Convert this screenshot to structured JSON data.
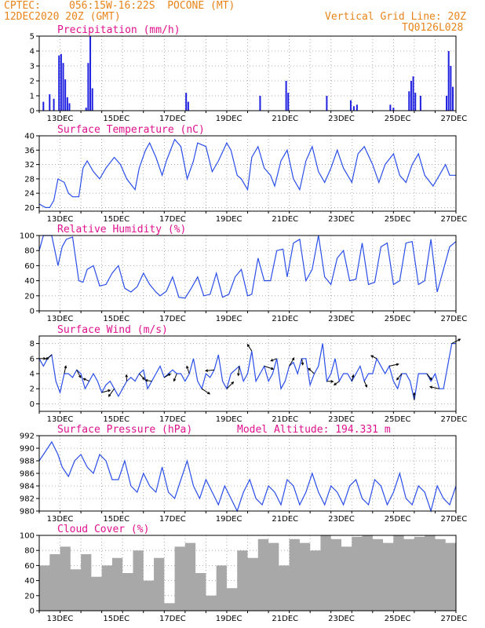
{
  "header": {
    "source": "CPTEC:",
    "location": "056:15W-16:22S  POCONE (MT)",
    "init": "12DEC2020 20Z (GMT)",
    "grid_note": "Vertical Grid Line: 20Z",
    "code": "TQ0126L028"
  },
  "model_altitude": "Model Altitude: 194.331 m",
  "colors": {
    "line": "#2a4ee8",
    "bar": "#2020e0",
    "cloud": "#a8a8a8",
    "title": "#e0118d",
    "header": "#e8841a"
  },
  "chart_data": [
    {
      "type": "bar",
      "title": "Precipitation (mm/h)",
      "ylim": [
        0,
        5
      ],
      "yticks": [
        0,
        1,
        2,
        3,
        4,
        5
      ],
      "x_labels": [
        "13DEC",
        "15DEC",
        "17DEC",
        "19DEC",
        "21DEC",
        "23DEC",
        "25DEC",
        "27DEC"
      ],
      "grid": true,
      "bars": [
        {
          "t": 0.2,
          "v": 0.6
        },
        {
          "t": 0.5,
          "v": 1.1
        },
        {
          "t": 0.7,
          "v": 0.8
        },
        {
          "t": 0.95,
          "v": 3.7
        },
        {
          "t": 1.05,
          "v": 3.8
        },
        {
          "t": 1.15,
          "v": 3.2
        },
        {
          "t": 1.25,
          "v": 2.1
        },
        {
          "t": 1.35,
          "v": 0.9
        },
        {
          "t": 1.45,
          "v": 0.5
        },
        {
          "t": 2.25,
          "v": 0.2
        },
        {
          "t": 2.35,
          "v": 3.2
        },
        {
          "t": 2.45,
          "v": 5.0
        },
        {
          "t": 2.55,
          "v": 1.5
        },
        {
          "t": 7.05,
          "v": 1.2
        },
        {
          "t": 7.15,
          "v": 0.6
        },
        {
          "t": 10.6,
          "v": 1.0
        },
        {
          "t": 11.85,
          "v": 2.0
        },
        {
          "t": 11.95,
          "v": 1.2
        },
        {
          "t": 13.8,
          "v": 1.0
        },
        {
          "t": 14.95,
          "v": 0.7
        },
        {
          "t": 15.1,
          "v": 0.3
        },
        {
          "t": 15.25,
          "v": 0.4
        },
        {
          "t": 16.85,
          "v": 0.4
        },
        {
          "t": 17.0,
          "v": 0.2
        },
        {
          "t": 17.75,
          "v": 1.3
        },
        {
          "t": 17.85,
          "v": 2.0
        },
        {
          "t": 17.95,
          "v": 2.3
        },
        {
          "t": 18.05,
          "v": 1.2
        },
        {
          "t": 18.3,
          "v": 1.0
        },
        {
          "t": 19.55,
          "v": 1.0
        },
        {
          "t": 19.65,
          "v": 4.0
        },
        {
          "t": 19.75,
          "v": 3.0
        },
        {
          "t": 19.85,
          "v": 1.6
        }
      ]
    },
    {
      "type": "line",
      "title": "Surface Temperature (nC)",
      "ylim": [
        19,
        40
      ],
      "yticks": [
        20,
        24,
        28,
        32,
        36,
        40
      ],
      "x_labels": [
        "13DEC",
        "15DEC",
        "17DEC",
        "19DEC",
        "21DEC",
        "23DEC",
        "25DEC",
        "27DEC"
      ],
      "grid": true,
      "x": [
        0,
        0.3,
        0.5,
        0.7,
        0.9,
        1.2,
        1.4,
        1.6,
        1.9,
        2.1,
        2.3,
        2.6,
        2.9,
        3.2,
        3.6,
        3.9,
        4.2,
        4.6,
        4.8,
        5.1,
        5.3,
        5.6,
        5.9,
        6.1,
        6.5,
        6.8,
        7.1,
        7.4,
        7.6,
        8.0,
        8.3,
        8.6,
        9.0,
        9.2,
        9.5,
        9.7,
        10.0,
        10.2,
        10.5,
        10.8,
        11.1,
        11.3,
        11.6,
        11.9,
        12.2,
        12.5,
        12.8,
        13.1,
        13.4,
        13.7,
        14.0,
        14.3,
        14.6,
        15.0,
        15.3,
        15.6,
        16.0,
        16.3,
        16.6,
        17.0,
        17.3,
        17.6,
        17.9,
        18.2,
        18.5,
        18.9,
        19.2,
        19.5,
        19.7,
        20.0
      ],
      "y": [
        21,
        20,
        20,
        22,
        28,
        27,
        24,
        23,
        23,
        31,
        33,
        30,
        28,
        31,
        34,
        32,
        28,
        25,
        31,
        36,
        38,
        34,
        29,
        33,
        39,
        37,
        28,
        33,
        38,
        37,
        30,
        33,
        38,
        36,
        29,
        28,
        25,
        34,
        37,
        31,
        29,
        26,
        33,
        36,
        28,
        25,
        33,
        37,
        30,
        27,
        31,
        36,
        31,
        27,
        35,
        37,
        32,
        27,
        32,
        35,
        29,
        27,
        32,
        35,
        29,
        26,
        29,
        32,
        29,
        29
      ]
    },
    {
      "type": "line",
      "title": "Relative Humidity (%)",
      "ylim": [
        0,
        100
      ],
      "yticks": [
        0,
        20,
        40,
        60,
        80,
        100
      ],
      "x_labels": [
        "13DEC",
        "15DEC",
        "17DEC",
        "19DEC",
        "21DEC",
        "23DEC",
        "25DEC",
        "27DEC"
      ],
      "grid": true,
      "x": [
        0,
        0.2,
        0.4,
        0.6,
        0.9,
        1.1,
        1.3,
        1.6,
        1.9,
        2.1,
        2.3,
        2.6,
        2.9,
        3.2,
        3.5,
        3.8,
        4.1,
        4.4,
        4.7,
        5.0,
        5.3,
        5.6,
        5.8,
        6.1,
        6.4,
        6.7,
        7.0,
        7.3,
        7.6,
        7.9,
        8.2,
        8.5,
        8.8,
        9.1,
        9.4,
        9.7,
        10.0,
        10.2,
        10.5,
        10.8,
        11.1,
        11.4,
        11.7,
        11.9,
        12.2,
        12.5,
        12.8,
        13.1,
        13.4,
        13.7,
        14.0,
        14.3,
        14.6,
        14.9,
        15.2,
        15.5,
        15.8,
        16.1,
        16.4,
        16.7,
        17.0,
        17.3,
        17.6,
        17.9,
        18.2,
        18.5,
        18.8,
        19.1,
        19.4,
        19.7,
        20.0
      ],
      "y": [
        80,
        100,
        100,
        100,
        60,
        85,
        95,
        98,
        40,
        38,
        55,
        60,
        33,
        35,
        50,
        60,
        30,
        25,
        32,
        50,
        35,
        25,
        20,
        26,
        45,
        18,
        17,
        30,
        45,
        20,
        22,
        50,
        18,
        22,
        45,
        55,
        20,
        22,
        70,
        40,
        40,
        80,
        82,
        45,
        90,
        95,
        40,
        55,
        100,
        45,
        35,
        70,
        80,
        40,
        42,
        90,
        35,
        38,
        85,
        90,
        35,
        40,
        90,
        92,
        35,
        40,
        95,
        25,
        55,
        85,
        92
      ]
    },
    {
      "type": "line",
      "title": "Surface Wind (m/s)",
      "ylim": [
        -1,
        9
      ],
      "yticks": [
        0,
        2,
        4,
        6,
        8
      ],
      "x_labels": [
        "13DEC",
        "15DEC",
        "17DEC",
        "19DEC",
        "21DEC",
        "23DEC",
        "25DEC",
        "27DEC"
      ],
      "grid": true,
      "x": [
        0,
        0.2,
        0.4,
        0.6,
        0.8,
        1.0,
        1.2,
        1.4,
        1.6,
        1.8,
        2.0,
        2.2,
        2.4,
        2.6,
        2.8,
        3.0,
        3.2,
        3.4,
        3.6,
        3.8,
        4.0,
        4.2,
        4.4,
        4.6,
        4.8,
        5.0,
        5.2,
        5.4,
        5.6,
        5.8,
        6.0,
        6.2,
        6.4,
        6.6,
        6.8,
        7.0,
        7.2,
        7.4,
        7.6,
        7.8,
        8.0,
        8.2,
        8.4,
        8.6,
        8.8,
        9.0,
        9.2,
        9.4,
        9.6,
        9.8,
        10.0,
        10.2,
        10.4,
        10.6,
        10.8,
        11.0,
        11.2,
        11.4,
        11.6,
        11.8,
        12.0,
        12.2,
        12.4,
        12.6,
        12.8,
        13.0,
        13.2,
        13.4,
        13.6,
        13.8,
        14.0,
        14.2,
        14.4,
        14.6,
        14.8,
        15.0,
        15.2,
        15.4,
        15.6,
        15.8,
        16.0,
        16.2,
        16.4,
        16.6,
        16.8,
        17.0,
        17.2,
        17.4,
        17.6,
        17.8,
        18.0,
        18.2,
        18.4,
        18.6,
        18.8,
        19.0,
        19.2,
        19.4,
        19.6,
        19.8,
        20.0
      ],
      "y": [
        6,
        5,
        6,
        6.5,
        3,
        1.5,
        4,
        4,
        3.5,
        4.5,
        4,
        2,
        3,
        4,
        3,
        1.5,
        2.5,
        3,
        2,
        1,
        2,
        3,
        3.5,
        3,
        4,
        4.5,
        2,
        3,
        4,
        5,
        3.5,
        4,
        4.5,
        4,
        4,
        3,
        4,
        6,
        3,
        2,
        4,
        3.5,
        4.5,
        6.5,
        3,
        2,
        4,
        4.5,
        5,
        3,
        4,
        7,
        3,
        4,
        5,
        3,
        4,
        6,
        2,
        3,
        5,
        5.5,
        4,
        6,
        6,
        2.5,
        4,
        5,
        8,
        3,
        4,
        6,
        3,
        4,
        4,
        3,
        4,
        5,
        3,
        4,
        4,
        6,
        5,
        4,
        5,
        3,
        2,
        4,
        4,
        3,
        0.5,
        4,
        4,
        4,
        3,
        4,
        2,
        2,
        5,
        8,
        8
      ]
    },
    {
      "type": "line",
      "title": "Surface Pressure (hPa)",
      "ylim": [
        980,
        992
      ],
      "yticks": [
        980,
        982,
        984,
        986,
        988,
        990,
        992
      ],
      "x_labels": [
        "13DEC",
        "15DEC",
        "17DEC",
        "19DEC",
        "21DEC",
        "23DEC",
        "25DEC",
        "27DEC"
      ],
      "grid": true,
      "x": [
        0,
        0.3,
        0.6,
        0.9,
        1.1,
        1.4,
        1.7,
        2.0,
        2.3,
        2.6,
        2.9,
        3.2,
        3.5,
        3.8,
        4.1,
        4.4,
        4.7,
        5.0,
        5.3,
        5.6,
        5.9,
        6.2,
        6.5,
        6.8,
        7.1,
        7.4,
        7.7,
        8.0,
        8.3,
        8.6,
        8.9,
        9.2,
        9.5,
        9.8,
        10.1,
        10.4,
        10.7,
        11.0,
        11.3,
        11.6,
        11.9,
        12.2,
        12.5,
        12.8,
        13.1,
        13.4,
        13.7,
        14.0,
        14.3,
        14.6,
        14.9,
        15.2,
        15.5,
        15.8,
        16.1,
        16.4,
        16.7,
        17.0,
        17.3,
        17.6,
        17.9,
        18.2,
        18.5,
        18.8,
        19.1,
        19.4,
        19.7,
        20.0
      ],
      "y": [
        988,
        989.5,
        991,
        989,
        987,
        985.5,
        988,
        989,
        987,
        986,
        989,
        988,
        985,
        985,
        988,
        984,
        983,
        986,
        984,
        983,
        987,
        983,
        982,
        985,
        988,
        984,
        982,
        985,
        983,
        981,
        984,
        982,
        980,
        983,
        985,
        982,
        981,
        984,
        983,
        981,
        985,
        984,
        981,
        983,
        986,
        983,
        981,
        984,
        983,
        981,
        984,
        985,
        982,
        981,
        985,
        984,
        981,
        983,
        986,
        982,
        981,
        984,
        983,
        980,
        984,
        982,
        981,
        984
      ]
    },
    {
      "type": "area",
      "title": "Cloud Cover (%)",
      "ylim": [
        0,
        100
      ],
      "yticks": [
        0,
        20,
        40,
        60,
        80,
        100
      ],
      "x_labels": [
        "13DEC",
        "15DEC",
        "17DEC",
        "19DEC",
        "21DEC",
        "23DEC",
        "25DEC",
        "27DEC"
      ],
      "grid": true,
      "x": [
        0,
        0.5,
        1.0,
        1.5,
        2.0,
        2.5,
        3.0,
        3.5,
        4.0,
        4.5,
        5.0,
        5.5,
        6.0,
        6.5,
        7.0,
        7.5,
        8.0,
        8.5,
        9.0,
        9.5,
        10.0,
        10.5,
        11.0,
        11.5,
        12.0,
        12.5,
        13.0,
        13.5,
        14.0,
        14.5,
        15.0,
        15.5,
        16.0,
        16.5,
        17.0,
        17.5,
        18.0,
        18.5,
        19.0,
        19.5,
        20.0
      ],
      "y": [
        60,
        75,
        85,
        55,
        75,
        45,
        60,
        70,
        50,
        80,
        40,
        70,
        10,
        85,
        90,
        50,
        20,
        60,
        30,
        80,
        70,
        95,
        90,
        60,
        95,
        90,
        80,
        100,
        95,
        85,
        98,
        100,
        95,
        90,
        100,
        95,
        98,
        100,
        95,
        90,
        95
      ]
    }
  ]
}
